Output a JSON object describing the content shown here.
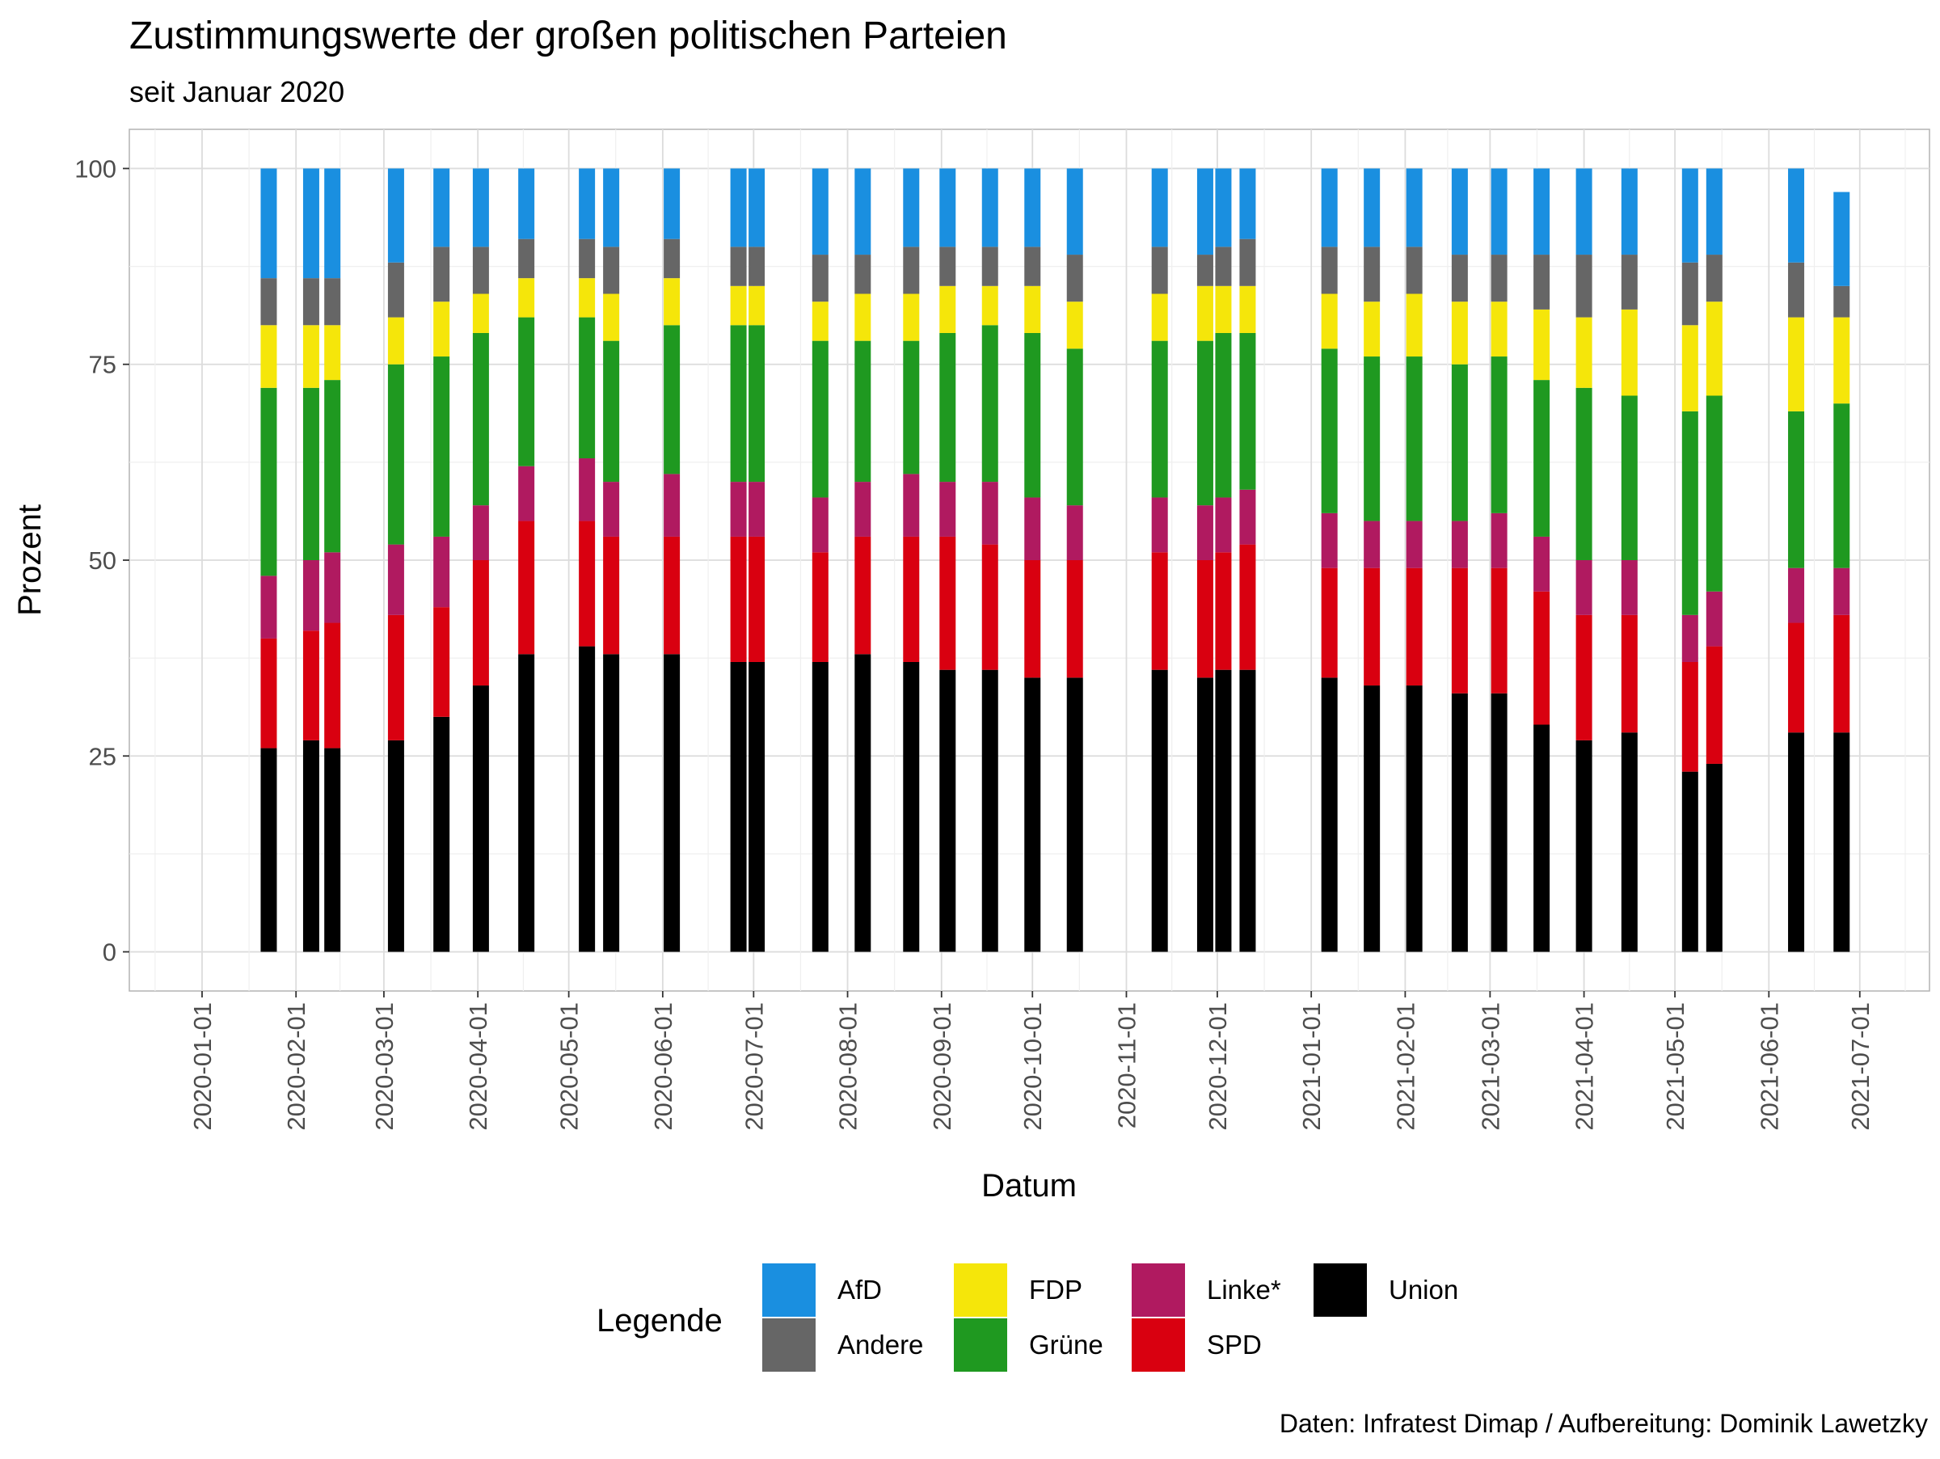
{
  "chart_data": {
    "type": "bar",
    "stacked": true,
    "title": "Zustimmungswerte der großen politischen Parteien",
    "subtitle": "seit Januar 2020",
    "xlabel": "Datum",
    "ylabel": "Prozent",
    "caption": "Daten: Infratest Dimap / Aufbereitung: Dominik Lawetzky",
    "x_axis": {
      "type": "date",
      "range": [
        "2019-12-08",
        "2021-07-24"
      ],
      "ticks": [
        "2020-01-01",
        "2020-02-01",
        "2020-03-01",
        "2020-04-01",
        "2020-05-01",
        "2020-06-01",
        "2020-07-01",
        "2020-08-01",
        "2020-09-01",
        "2020-10-01",
        "2020-11-01",
        "2020-12-01",
        "2021-01-01",
        "2021-02-01",
        "2021-03-01",
        "2021-04-01",
        "2021-05-01",
        "2021-06-01",
        "2021-07-01"
      ]
    },
    "y_axis": {
      "range": [
        -5,
        105
      ],
      "ticks": [
        0,
        25,
        50,
        75,
        100
      ]
    },
    "grid": true,
    "legend": {
      "title": "Legende",
      "position": "bottom",
      "entries": [
        {
          "name": "AfD",
          "color": "#1a8fe0"
        },
        {
          "name": "Andere",
          "color": "#666666"
        },
        {
          "name": "FDP",
          "color": "#f5e60a"
        },
        {
          "name": "Grüne",
          "color": "#1f9920"
        },
        {
          "name": "Linke*",
          "color": "#b01a60"
        },
        {
          "name": "SPD",
          "color": "#d90010"
        },
        {
          "name": "Union",
          "color": "#000000"
        }
      ]
    },
    "stack_order": [
      "Union",
      "SPD",
      "Linke*",
      "Grüne",
      "FDP",
      "Andere",
      "AfD"
    ],
    "x": [
      "2020-01-23",
      "2020-02-06",
      "2020-02-13",
      "2020-03-05",
      "2020-03-20",
      "2020-04-02",
      "2020-04-17",
      "2020-05-07",
      "2020-05-15",
      "2020-06-04",
      "2020-06-26",
      "2020-07-02",
      "2020-07-23",
      "2020-08-06",
      "2020-08-22",
      "2020-09-03",
      "2020-09-17",
      "2020-10-01",
      "2020-10-15",
      "2020-11-12",
      "2020-11-27",
      "2020-12-03",
      "2020-12-11",
      "2021-01-07",
      "2021-01-21",
      "2021-02-04",
      "2021-02-19",
      "2021-03-04",
      "2021-03-18",
      "2021-04-01",
      "2021-04-16",
      "2021-05-06",
      "2021-05-14",
      "2021-06-10",
      "2021-06-25"
    ],
    "series": [
      {
        "name": "Union",
        "values": [
          26,
          27,
          26,
          27,
          30,
          34,
          38,
          39,
          38,
          38,
          37,
          37,
          37,
          38,
          37,
          36,
          36,
          35,
          35,
          36,
          35,
          36,
          36,
          35,
          34,
          34,
          33,
          33,
          29,
          27,
          28,
          23,
          24,
          28,
          28
        ]
      },
      {
        "name": "SPD",
        "values": [
          14,
          14,
          16,
          16,
          14,
          16,
          17,
          16,
          15,
          15,
          16,
          16,
          14,
          15,
          16,
          17,
          16,
          15,
          15,
          15,
          15,
          15,
          16,
          14,
          15,
          15,
          16,
          16,
          17,
          16,
          15,
          14,
          15,
          14,
          15
        ]
      },
      {
        "name": "Linke*",
        "values": [
          8,
          9,
          9,
          9,
          9,
          7,
          7,
          8,
          7,
          8,
          7,
          7,
          7,
          7,
          8,
          7,
          8,
          8,
          7,
          7,
          7,
          7,
          7,
          7,
          6,
          6,
          6,
          7,
          7,
          7,
          7,
          6,
          7,
          7,
          6
        ]
      },
      {
        "name": "Grüne",
        "values": [
          24,
          22,
          22,
          23,
          23,
          22,
          19,
          18,
          18,
          19,
          20,
          20,
          20,
          18,
          17,
          19,
          20,
          21,
          20,
          20,
          21,
          21,
          20,
          21,
          21,
          21,
          20,
          20,
          20,
          22,
          21,
          26,
          25,
          20,
          21
        ]
      },
      {
        "name": "FDP",
        "values": [
          8,
          8,
          7,
          6,
          7,
          5,
          5,
          5,
          6,
          6,
          5,
          5,
          5,
          6,
          6,
          6,
          5,
          6,
          6,
          6,
          7,
          6,
          6,
          7,
          7,
          8,
          8,
          7,
          9,
          9,
          11,
          11,
          12,
          12,
          11
        ]
      },
      {
        "name": "Andere",
        "values": [
          6,
          6,
          6,
          7,
          7,
          6,
          5,
          5,
          6,
          5,
          5,
          5,
          6,
          5,
          6,
          5,
          5,
          5,
          6,
          6,
          4,
          5,
          6,
          6,
          7,
          6,
          6,
          6,
          7,
          8,
          7,
          8,
          6,
          7,
          4
        ]
      },
      {
        "name": "AfD",
        "values": [
          14,
          14,
          14,
          12,
          10,
          10,
          9,
          9,
          10,
          9,
          10,
          10,
          11,
          11,
          10,
          10,
          10,
          10,
          11,
          10,
          11,
          10,
          9,
          10,
          10,
          10,
          11,
          11,
          11,
          11,
          11,
          12,
          11,
          12,
          12
        ]
      }
    ]
  }
}
